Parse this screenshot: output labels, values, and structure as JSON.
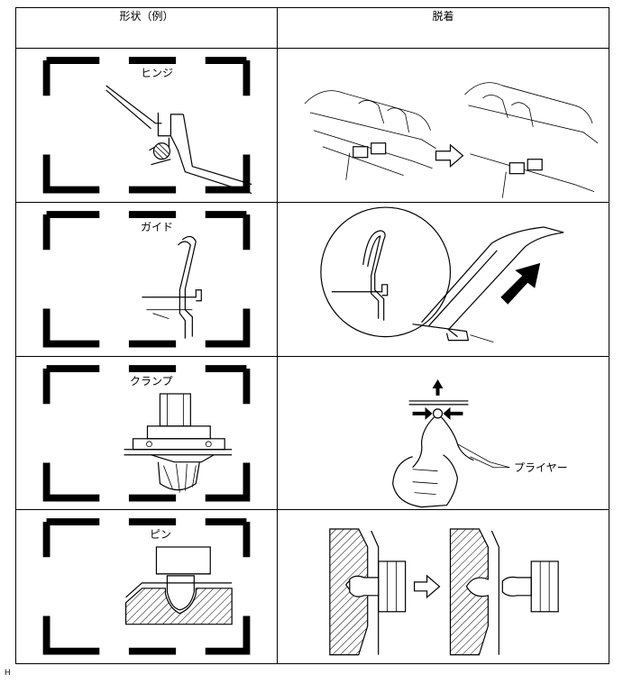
{
  "table": {
    "headers": {
      "shape": "形状（例）",
      "removal": "脱着"
    },
    "rows": [
      {
        "shape_label": "ヒンジ"
      },
      {
        "shape_label": "ガイド"
      },
      {
        "shape_label": "クランプ"
      },
      {
        "shape_label": "ピン"
      }
    ],
    "callouts": {
      "pliers": "プライヤー"
    }
  },
  "footer": {
    "code": "H"
  }
}
